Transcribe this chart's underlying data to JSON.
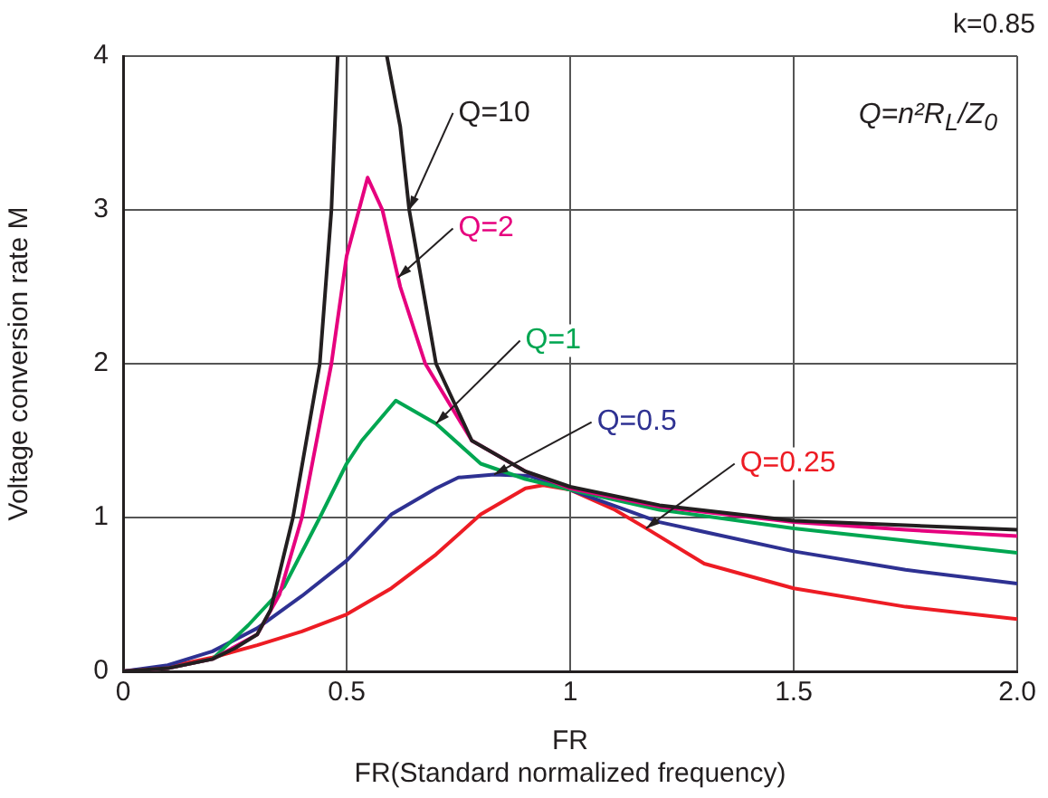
{
  "chart_data": {
    "type": "line",
    "xlabel": "FR",
    "ylabel": "Voltage conversion rate M",
    "annotations": [
      "FR(Standard normalized frequency)",
      "k=0.85",
      "Q=n²R$_{L}$/Z$_{0}$"
    ],
    "xlim": [
      0,
      2.0
    ],
    "ylim": [
      0,
      4
    ],
    "xticks": [
      0,
      0.5,
      1,
      1.5,
      {
        "value": 2,
        "label": "2.0"
      }
    ],
    "yticks": [
      0,
      1,
      2,
      3,
      4
    ],
    "grid": true,
    "legend": false,
    "marker": "none",
    "line_style": "solid",
    "series": [
      {
        "name": "Q=10",
        "color": "#231f20",
        "x": [
          0,
          0.1,
          0.2,
          0.25,
          0.3,
          0.33,
          0.38,
          0.44,
          0.466,
          0.48,
          0.53,
          0.59,
          0.62,
          0.64,
          0.7,
          0.78,
          0.9,
          1.0,
          1.2,
          1.5,
          1.75,
          2.0
        ],
        "values": [
          0,
          0.02,
          0.08,
          0.15,
          0.24,
          0.4,
          1.0,
          2.0,
          3.0,
          4,
          null,
          4,
          3.54,
          3.0,
          2.0,
          1.5,
          1.3,
          1.2,
          1.08,
          0.98,
          0.95,
          0.92
        ]
      },
      {
        "name": "Q=2",
        "color": "#e6007e",
        "x": [
          0,
          0.1,
          0.2,
          0.3,
          0.35,
          0.4,
          0.466,
          0.5,
          0.547,
          0.58,
          0.62,
          0.676,
          0.78,
          0.9,
          1.0,
          1.2,
          1.5,
          1.75,
          2.0
        ],
        "values": [
          0,
          0.02,
          0.08,
          0.24,
          0.5,
          1.0,
          2.0,
          2.7,
          3.21,
          3.0,
          2.5,
          2.0,
          1.5,
          1.3,
          1.19,
          1.07,
          0.97,
          0.92,
          0.88
        ]
      },
      {
        "name": "Q=1",
        "color": "#00a651",
        "x": [
          0,
          0.1,
          0.2,
          0.28,
          0.36,
          0.44,
          0.5,
          0.534,
          0.61,
          0.7,
          0.8,
          0.9,
          1.0,
          1.2,
          1.5,
          1.75,
          2.0
        ],
        "values": [
          0,
          0.02,
          0.08,
          0.3,
          0.55,
          1.0,
          1.35,
          1.5,
          1.76,
          1.61,
          1.35,
          1.25,
          1.18,
          1.05,
          0.93,
          0.85,
          0.77
        ]
      },
      {
        "name": "Q=0.5",
        "color": "#2e3192",
        "x": [
          0,
          0.1,
          0.2,
          0.3,
          0.4,
          0.5,
          0.6,
          0.7,
          0.75,
          0.83,
          0.91,
          1.0,
          1.2,
          1.5,
          1.75,
          2.0
        ],
        "values": [
          0,
          0.04,
          0.13,
          0.28,
          0.49,
          0.72,
          1.02,
          1.19,
          1.26,
          1.28,
          1.27,
          1.18,
          0.97,
          0.78,
          0.66,
          0.57
        ]
      },
      {
        "name": "Q=0.25",
        "color": "#ed1c24",
        "x": [
          0,
          0.1,
          0.2,
          0.3,
          0.4,
          0.5,
          0.6,
          0.7,
          0.8,
          0.9,
          0.94,
          1.0,
          1.1,
          1.17,
          1.3,
          1.5,
          1.75,
          2.0
        ],
        "values": [
          0,
          0.03,
          0.09,
          0.17,
          0.26,
          0.37,
          0.54,
          0.76,
          1.02,
          1.19,
          1.21,
          1.18,
          1.05,
          0.93,
          0.7,
          0.54,
          0.42,
          0.34
        ]
      }
    ]
  }
}
